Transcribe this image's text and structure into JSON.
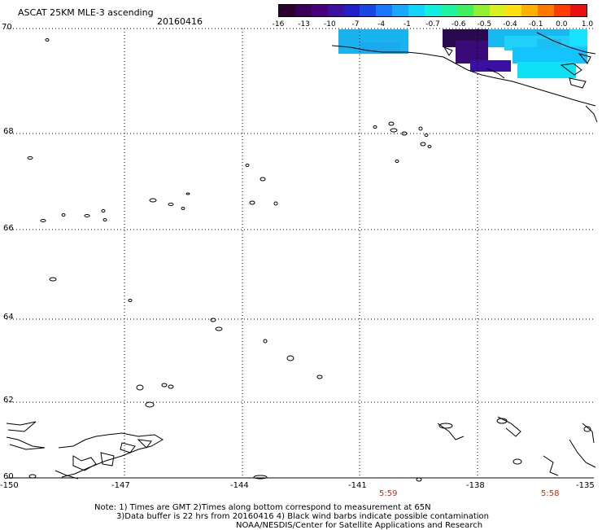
{
  "header": {
    "title": "ASCAT 25KM MLE-3 ascending",
    "date": "20160416"
  },
  "colorbar": {
    "labels": [
      "-16",
      "-13",
      "-10",
      "-7",
      "-4",
      "-1",
      "-0.7",
      "-0.6",
      "-0.5",
      "-0.4",
      "-0.1",
      "0.0",
      "1.0"
    ],
    "colors": [
      "#2b0030",
      "#3a0058",
      "#4a007a",
      "#3d10a0",
      "#2020c8",
      "#1a46e6",
      "#1a78ff",
      "#18a8ff",
      "#14d4ff",
      "#10f0e0",
      "#20f4a0",
      "#40f060",
      "#90f030",
      "#d8f020",
      "#ffe010",
      "#ffb000",
      "#ff7800",
      "#ff3c00",
      "#e81010"
    ]
  },
  "map": {
    "lat_labels": [
      "70",
      "68",
      "66",
      "64",
      "62",
      "60"
    ],
    "lon_labels": [
      "-150",
      "-147",
      "-144",
      "-141",
      "-138",
      "-135"
    ],
    "times": [
      "5:59",
      "5:58"
    ]
  },
  "notes": {
    "line1": "Note: 1) Times are GMT 2)Times along bottom correspond to measurement at 65N",
    "line2": "3)Data buffer is 22 hrs from 20160416 4) Black wind barbs indicate possible contamination",
    "line3": "NOAA/NESDIS/Center for Satellite Applications and Research"
  }
}
